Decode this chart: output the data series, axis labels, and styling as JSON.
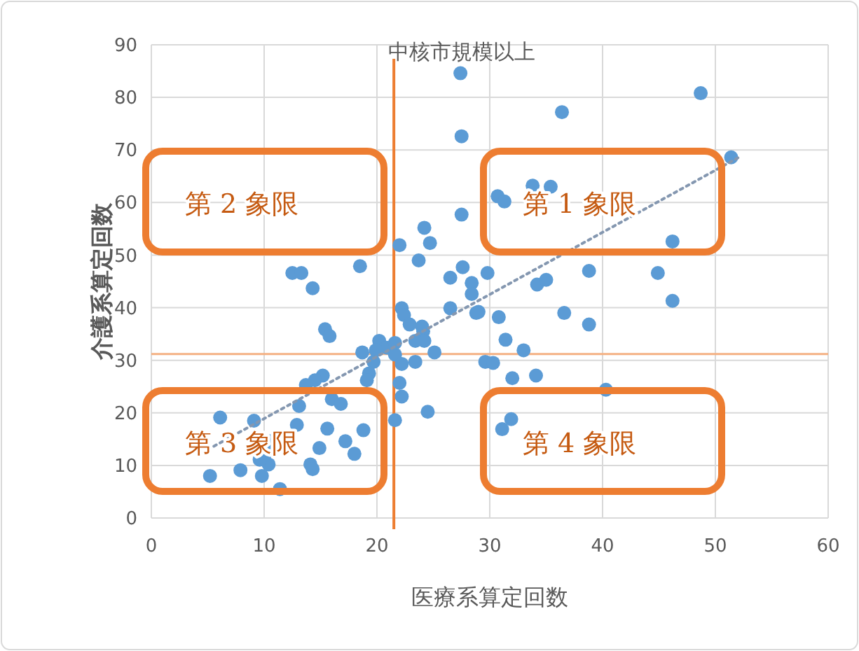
{
  "chart_data": {
    "type": "scatter",
    "title": "中核市規模以上",
    "xlabel": "医療系算定回数",
    "ylabel": "介護系算定回数",
    "xlim": [
      0,
      60
    ],
    "ylim": [
      0,
      90
    ],
    "xticks": [
      0,
      10,
      20,
      30,
      40,
      50,
      60
    ],
    "yticks": [
      0,
      10,
      20,
      30,
      40,
      50,
      60,
      70,
      80,
      90
    ],
    "grid": true,
    "ref_lines": [
      {
        "axis": "x",
        "value": 21.5,
        "color": "#ed7d31"
      },
      {
        "axis": "y",
        "value": 31.2,
        "color": "#f4b183"
      }
    ],
    "annotations": [
      "第 1 象限",
      "第 2 象限",
      "第 3 象限",
      "第 4 象限"
    ],
    "series": [
      {
        "color": "#5b9bd5",
        "marker": "circle",
        "x": [
          27.4,
          27.5,
          27.5,
          24.2,
          24.7,
          22.0,
          23.7,
          18.5,
          12.5,
          13.3,
          14.3,
          27.6,
          26.5,
          29.8,
          28.4,
          28.4,
          48.7,
          36.4,
          51.4,
          33.8,
          35.4,
          30.7,
          31.3,
          46.2,
          34.2,
          35.0,
          38.8,
          44.9,
          46.2,
          26.5,
          29.0,
          30.8,
          36.6,
          38.8,
          24.1,
          24.2,
          25.1,
          31.4,
          33.0,
          29.6,
          30.3,
          32.0,
          34.1,
          40.3,
          24.5,
          31.9,
          31.1,
          15.4,
          15.8,
          22.2,
          22.4,
          22.9,
          24.0,
          23.4,
          28.8,
          20.2,
          20.9,
          18.7,
          19.9,
          21.6,
          22.2,
          21.6,
          19.7,
          19.3,
          19.1,
          23.4,
          22.0,
          22.2,
          21.6,
          15.2,
          14.5,
          13.7,
          16.0,
          16.8,
          13.1,
          6.1,
          9.1,
          12.9,
          15.6,
          18.8,
          17.2,
          18.0,
          14.9,
          14.1,
          14.3,
          10.6,
          10.2,
          10.4,
          9.6,
          9.8,
          7.9,
          5.2,
          11.4
        ],
        "values": [
          84.6,
          72.6,
          57.7,
          55.2,
          52.3,
          51.9,
          49.0,
          47.9,
          46.6,
          46.6,
          43.7,
          47.7,
          45.7,
          46.6,
          44.7,
          42.6,
          80.8,
          77.2,
          68.6,
          63.2,
          63.0,
          61.2,
          60.2,
          52.6,
          44.4,
          45.3,
          47.0,
          46.6,
          41.3,
          39.9,
          39.2,
          38.2,
          39.0,
          36.8,
          35.5,
          33.7,
          31.5,
          33.9,
          31.9,
          29.7,
          29.5,
          26.6,
          27.1,
          24.4,
          20.2,
          18.8,
          16.9,
          35.9,
          34.6,
          39.9,
          38.6,
          36.8,
          36.4,
          33.7,
          39.0,
          33.7,
          32.4,
          31.5,
          31.9,
          31.1,
          29.3,
          33.3,
          29.7,
          27.5,
          26.2,
          29.7,
          25.7,
          23.1,
          18.6,
          27.1,
          26.2,
          25.3,
          22.6,
          21.7,
          21.3,
          19.1,
          18.5,
          17.7,
          17.0,
          16.7,
          14.6,
          12.2,
          13.3,
          10.2,
          9.3,
          14.6,
          12.4,
          10.2,
          11.1,
          8.0,
          9.1,
          8.0,
          5.5
        ]
      },
      {
        "type": "line",
        "color": "#8497b0",
        "line_style": "dotted",
        "marker": "none",
        "x": [
          5,
          52
        ],
        "values": [
          13,
          68.5
        ]
      }
    ]
  }
}
